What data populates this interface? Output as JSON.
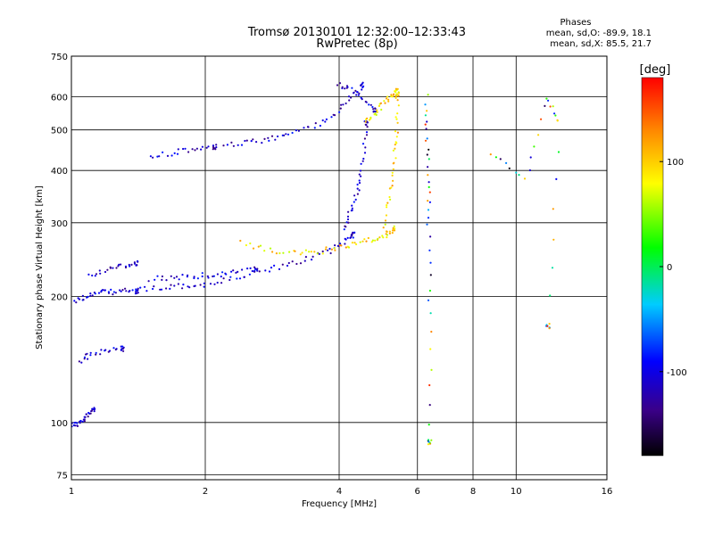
{
  "chart_data": {
    "type": "scatter",
    "title": "Tromsø 20130101 12:32:00–12:33:43",
    "subtitle": "RwPretec (8p)",
    "xlabel": "Frequency [MHz]",
    "ylabel": "Stationary phase Virtual Height [km]",
    "xscale": "log",
    "yscale": "log",
    "xlim": [
      1,
      16
    ],
    "ylim": [
      73,
      750
    ],
    "x_ticks": [
      1,
      2,
      4,
      6,
      8,
      10,
      16
    ],
    "y_ticks": [
      75,
      100,
      200,
      300,
      400,
      500,
      600,
      750
    ],
    "grid": true,
    "phase_stats": {
      "title": "Phases",
      "o_line": "mean, sd,O: -89.9, 18.1",
      "x_line": "mean, sd,X: 85.5, 21.7"
    },
    "colorbar": {
      "label": "[deg]",
      "range": [
        -180,
        180
      ],
      "ticks": [
        "100",
        "0",
        "-100"
      ],
      "tick_values": [
        100,
        0,
        -100
      ]
    },
    "series": [
      {
        "traces": [
          {
            "x": [
              1.0,
              1.03,
              1.06,
              1.09,
              1.12
            ],
            "y": [
              99,
              99,
              101,
              104,
              108
            ]
          },
          {
            "x": [
              1.02,
              1.08,
              1.15,
              1.22,
              1.3,
              1.4
            ],
            "y": [
              195,
              200,
              204,
              205,
              206,
              206
            ]
          },
          {
            "x": [
              1.4,
              1.6,
              1.8,
              2.0,
              2.3,
              2.6,
              3.0,
              3.4,
              3.8,
              4.1,
              4.3
            ],
            "y": [
              207,
              210,
              212,
              213,
              220,
              228,
              236,
              246,
              256,
              270,
              282
            ]
          },
          {
            "x": [
              1.1,
              1.2,
              1.3,
              1.4
            ],
            "y": [
              225,
              232,
              236,
              240
            ]
          },
          {
            "x": [
              1.5,
              1.7,
              1.9,
              2.1,
              2.3,
              2.6
            ],
            "y": [
              220,
              222,
              224,
              225,
              228,
              232
            ]
          },
          {
            "x": [
              1.5,
              1.7,
              1.9,
              2.1
            ],
            "y": [
              430,
              440,
              450,
              455
            ]
          },
          {
            "x": [
              2.2,
              2.5,
              2.8,
              3.1,
              3.5,
              3.9,
              4.2,
              4.5
            ],
            "y": [
              460,
              465,
              475,
              490,
              510,
              540,
              590,
              640
            ]
          },
          {
            "x": [
              4.1,
              4.2,
              4.35,
              4.45,
              4.55,
              4.6
            ],
            "y": [
              290,
              310,
              340,
              380,
              440,
              520
            ]
          },
          {
            "x": [
              4.0,
              4.2,
              4.5,
              4.8
            ],
            "y": [
              640,
              630,
              600,
              560
            ]
          },
          {
            "x": [
              1.05,
              1.1,
              1.2,
              1.3
            ],
            "y": [
              140,
              145,
              148,
              150
            ]
          }
        ],
        "color_range": [
          -140,
          -80
        ]
      },
      {
        "traces": [
          {
            "x": [
              2.4,
              2.8,
              3.2,
              3.6,
              4.0,
              4.4,
              4.8,
              5.1,
              5.3
            ],
            "y": [
              268,
              258,
              253,
              256,
              262,
              268,
              275,
              280,
              290
            ]
          },
          {
            "x": [
              5.05,
              5.15,
              5.25,
              5.35,
              5.4,
              5.4
            ],
            "y": [
              280,
              330,
              380,
              440,
              500,
              600
            ]
          },
          {
            "x": [
              4.6,
              4.8,
              5.0,
              5.2,
              5.4
            ],
            "y": [
              520,
              545,
              575,
              600,
              620
            ]
          }
        ],
        "color_range": [
          60,
          130
        ]
      },
      {
        "traces": [
          {
            "x": [
              6.3,
              6.3,
              6.35,
              6.35,
              6.4,
              6.4
            ],
            "y": [
              600,
              480,
              380,
              300,
              180,
              90
            ]
          },
          {
            "x": [
              8.8,
              10.5,
              11.7,
              12.5,
              11.8
            ],
            "y": [
              440,
              380,
              600,
              520,
              170
            ]
          }
        ],
        "color_range": [
          -180,
          180
        ]
      }
    ]
  }
}
